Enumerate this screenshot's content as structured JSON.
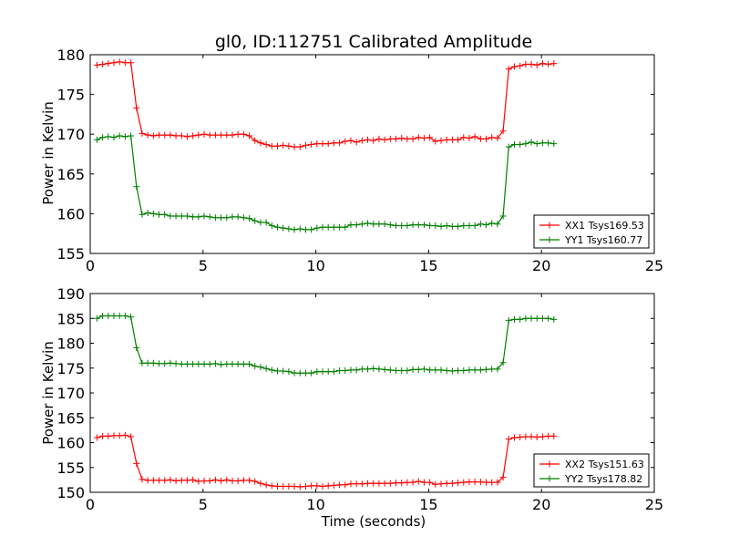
{
  "chart_data": [
    {
      "type": "line",
      "title": "gl0, ID:112751 Calibrated Amplitude",
      "xlabel": "",
      "ylabel": "Power in Kelvin",
      "xlim": [
        0,
        25
      ],
      "ylim": [
        155,
        180
      ],
      "xticks": [
        "0",
        "5",
        "10",
        "15",
        "20",
        "25"
      ],
      "yticks": [
        "155",
        "160",
        "165",
        "170",
        "175",
        "180"
      ],
      "grid": false,
      "legend": "lower-right",
      "x": [
        0.3,
        0.55,
        0.8,
        1.05,
        1.3,
        1.55,
        1.8,
        2.05,
        2.3,
        2.55,
        2.8,
        3.05,
        3.3,
        3.55,
        3.8,
        4.05,
        4.3,
        4.55,
        4.8,
        5.05,
        5.3,
        5.55,
        5.8,
        6.05,
        6.3,
        6.55,
        6.8,
        7.05,
        7.3,
        7.55,
        7.8,
        8.05,
        8.3,
        8.55,
        8.8,
        9.05,
        9.3,
        9.55,
        9.8,
        10.05,
        10.3,
        10.55,
        10.8,
        11.05,
        11.3,
        11.55,
        11.8,
        12.05,
        12.3,
        12.55,
        12.8,
        13.05,
        13.3,
        13.55,
        13.8,
        14.05,
        14.3,
        14.55,
        14.8,
        15.05,
        15.3,
        15.55,
        15.8,
        16.05,
        16.3,
        16.55,
        16.8,
        17.05,
        17.3,
        17.55,
        17.8,
        18.05,
        18.3,
        18.55,
        18.8,
        19.05,
        19.3,
        19.55,
        19.8,
        20.05,
        20.3,
        20.55
      ],
      "series": [
        {
          "name": "XX1 Tsys169.53",
          "color": "#ff0000",
          "values": [
            178.7,
            178.8,
            178.9,
            179.0,
            179.1,
            179.0,
            179.0,
            173.3,
            170.1,
            169.9,
            169.8,
            169.9,
            169.9,
            169.9,
            169.8,
            169.8,
            169.7,
            169.8,
            169.9,
            170.0,
            169.9,
            169.9,
            169.9,
            169.9,
            169.9,
            170.0,
            170.0,
            169.8,
            169.2,
            168.9,
            168.7,
            168.5,
            168.5,
            168.6,
            168.5,
            168.4,
            168.4,
            168.6,
            168.7,
            168.8,
            168.8,
            168.8,
            168.9,
            168.9,
            169.1,
            169.2,
            169.0,
            169.2,
            169.3,
            169.2,
            169.4,
            169.3,
            169.4,
            169.4,
            169.5,
            169.4,
            169.4,
            169.6,
            169.5,
            169.6,
            169.1,
            169.2,
            169.3,
            169.3,
            169.3,
            169.6,
            169.5,
            169.7,
            169.4,
            169.4,
            169.6,
            169.5,
            170.4,
            178.2,
            178.5,
            178.6,
            178.8,
            178.8,
            178.7,
            178.9,
            178.8,
            178.9
          ]
        },
        {
          "name": "YY1 Tsys160.77",
          "color": "#007f00",
          "values": [
            169.3,
            169.6,
            169.7,
            169.6,
            169.8,
            169.7,
            169.8,
            163.4,
            159.9,
            160.1,
            160.0,
            159.9,
            159.9,
            159.7,
            159.7,
            159.7,
            159.7,
            159.6,
            159.6,
            159.7,
            159.6,
            159.5,
            159.5,
            159.5,
            159.6,
            159.6,
            159.5,
            159.4,
            159.1,
            158.9,
            158.9,
            158.5,
            158.3,
            158.2,
            158.1,
            158.0,
            158.1,
            158.0,
            158.0,
            158.2,
            158.3,
            158.3,
            158.3,
            158.3,
            158.3,
            158.6,
            158.6,
            158.7,
            158.8,
            158.7,
            158.7,
            158.7,
            158.6,
            158.5,
            158.5,
            158.5,
            158.6,
            158.6,
            158.6,
            158.5,
            158.5,
            158.4,
            158.5,
            158.4,
            158.4,
            158.5,
            158.5,
            158.5,
            158.7,
            158.6,
            158.8,
            158.7,
            159.7,
            168.4,
            168.7,
            168.7,
            168.8,
            169.0,
            168.8,
            168.9,
            168.9,
            168.8
          ]
        }
      ]
    },
    {
      "type": "line",
      "title": "",
      "xlabel": "Time (seconds)",
      "ylabel": "Power in Kelvin",
      "xlim": [
        0,
        25
      ],
      "ylim": [
        150,
        190
      ],
      "xticks": [
        "0",
        "5",
        "10",
        "15",
        "20",
        "25"
      ],
      "yticks": [
        "150",
        "155",
        "160",
        "165",
        "170",
        "175",
        "180",
        "185",
        "190"
      ],
      "grid": false,
      "legend": "lower-right",
      "x": [
        0.3,
        0.55,
        0.8,
        1.05,
        1.3,
        1.55,
        1.8,
        2.05,
        2.3,
        2.55,
        2.8,
        3.05,
        3.3,
        3.55,
        3.8,
        4.05,
        4.3,
        4.55,
        4.8,
        5.05,
        5.3,
        5.55,
        5.8,
        6.05,
        6.3,
        6.55,
        6.8,
        7.05,
        7.3,
        7.55,
        7.8,
        8.05,
        8.3,
        8.55,
        8.8,
        9.05,
        9.3,
        9.55,
        9.8,
        10.05,
        10.3,
        10.55,
        10.8,
        11.05,
        11.3,
        11.55,
        11.8,
        12.05,
        12.3,
        12.55,
        12.8,
        13.05,
        13.3,
        13.55,
        13.8,
        14.05,
        14.3,
        14.55,
        14.8,
        15.05,
        15.3,
        15.55,
        15.8,
        16.05,
        16.3,
        16.55,
        16.8,
        17.05,
        17.3,
        17.55,
        17.8,
        18.05,
        18.3,
        18.55,
        18.8,
        19.05,
        19.3,
        19.55,
        19.8,
        20.05,
        20.3,
        20.55
      ],
      "series": [
        {
          "name": "XX2 Tsys151.63",
          "color": "#ff0000",
          "values": [
            161.0,
            161.3,
            161.3,
            161.4,
            161.4,
            161.5,
            161.2,
            155.8,
            152.6,
            152.4,
            152.4,
            152.4,
            152.4,
            152.5,
            152.3,
            152.4,
            152.4,
            152.5,
            152.2,
            152.3,
            152.3,
            152.5,
            152.3,
            152.5,
            152.3,
            152.3,
            152.4,
            152.4,
            152.2,
            151.8,
            151.5,
            151.3,
            151.2,
            151.2,
            151.2,
            151.2,
            151.1,
            151.2,
            151.3,
            151.3,
            151.2,
            151.3,
            151.4,
            151.5,
            151.5,
            151.7,
            151.7,
            151.7,
            151.8,
            151.8,
            151.8,
            151.8,
            151.8,
            151.9,
            151.9,
            152.0,
            152.0,
            152.2,
            152.0,
            152.0,
            151.6,
            151.7,
            151.8,
            151.8,
            151.9,
            152.0,
            152.1,
            152.1,
            152.1,
            152.0,
            152.0,
            152.0,
            153.0,
            160.7,
            161.0,
            161.1,
            161.2,
            161.2,
            161.1,
            161.2,
            161.3,
            161.3
          ]
        },
        {
          "name": "YY2 Tsys178.82",
          "color": "#007f00",
          "values": [
            185.0,
            185.5,
            185.5,
            185.5,
            185.5,
            185.5,
            185.3,
            179.1,
            176.0,
            176.0,
            176.0,
            175.9,
            175.9,
            176.0,
            175.9,
            175.8,
            175.8,
            175.8,
            175.8,
            175.8,
            175.8,
            175.9,
            175.7,
            175.8,
            175.8,
            175.8,
            175.8,
            175.8,
            175.4,
            175.2,
            174.9,
            174.6,
            174.4,
            174.4,
            174.3,
            174.0,
            174.0,
            174.0,
            174.0,
            174.3,
            174.3,
            174.3,
            174.3,
            174.5,
            174.5,
            174.6,
            174.6,
            174.8,
            174.8,
            174.9,
            174.8,
            174.7,
            174.6,
            174.5,
            174.5,
            174.5,
            174.7,
            174.7,
            174.8,
            174.6,
            174.6,
            174.6,
            174.5,
            174.4,
            174.5,
            174.5,
            174.6,
            174.6,
            174.6,
            174.7,
            174.8,
            174.8,
            176.1,
            184.6,
            184.8,
            184.8,
            185.0,
            185.0,
            185.0,
            185.0,
            185.0,
            184.8
          ]
        }
      ]
    }
  ]
}
